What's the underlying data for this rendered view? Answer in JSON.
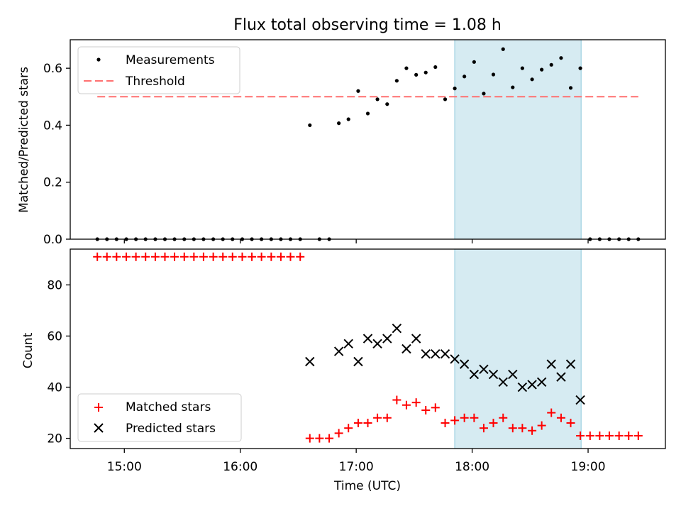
{
  "chart_data": [
    {
      "type": "scatter",
      "title": "Flux total observing time = 1.08 h",
      "ylabel": "Matched/Predicted stars",
      "ylim": [
        0,
        0.7
      ],
      "xlim": [
        14.5333,
        19.6667
      ],
      "yticks": [
        0.0,
        0.2,
        0.4,
        0.6
      ],
      "yticklabels": [
        "0.0",
        "0.2",
        "0.4",
        "0.6"
      ],
      "grid": false,
      "legend": "upper-left",
      "highlight": {
        "x0": 17.85,
        "x1": 18.94,
        "color": "#add8e6"
      },
      "series": [
        {
          "name": "Measurements",
          "marker": "dot",
          "color": "#000000",
          "points": [
            [
              14.767,
              0
            ],
            [
              14.85,
              0
            ],
            [
              14.933,
              0
            ],
            [
              15.017,
              0
            ],
            [
              15.1,
              0
            ],
            [
              15.183,
              0
            ],
            [
              15.267,
              0
            ],
            [
              15.35,
              0
            ],
            [
              15.433,
              0
            ],
            [
              15.517,
              0
            ],
            [
              15.6,
              0
            ],
            [
              15.683,
              0
            ],
            [
              15.767,
              0
            ],
            [
              15.85,
              0
            ],
            [
              15.933,
              0
            ],
            [
              16.017,
              0
            ],
            [
              16.1,
              0
            ],
            [
              16.183,
              0
            ],
            [
              16.267,
              0
            ],
            [
              16.35,
              0
            ],
            [
              16.433,
              0
            ],
            [
              16.517,
              0
            ],
            [
              16.6,
              0.4
            ],
            [
              16.683,
              0
            ],
            [
              16.767,
              0
            ],
            [
              16.85,
              0.407
            ],
            [
              16.933,
              0.421
            ],
            [
              17.017,
              0.52
            ],
            [
              17.1,
              0.441
            ],
            [
              17.183,
              0.491
            ],
            [
              17.267,
              0.474
            ],
            [
              17.35,
              0.556
            ],
            [
              17.433,
              0.6
            ],
            [
              17.517,
              0.577
            ],
            [
              17.6,
              0.585
            ],
            [
              17.683,
              0.604
            ],
            [
              17.767,
              0.491
            ],
            [
              17.85,
              0.529
            ],
            [
              17.933,
              0.571
            ],
            [
              18.017,
              0.622
            ],
            [
              18.1,
              0.511
            ],
            [
              18.183,
              0.578
            ],
            [
              18.267,
              0.667
            ],
            [
              18.35,
              0.533
            ],
            [
              18.433,
              0.6
            ],
            [
              18.517,
              0.561
            ],
            [
              18.6,
              0.595
            ],
            [
              18.683,
              0.612
            ],
            [
              18.767,
              0.636
            ],
            [
              18.85,
              0.531
            ],
            [
              18.933,
              0.6
            ],
            [
              19.017,
              0
            ],
            [
              19.1,
              0
            ],
            [
              19.183,
              0
            ],
            [
              19.267,
              0
            ],
            [
              19.35,
              0
            ],
            [
              19.433,
              0
            ]
          ]
        },
        {
          "name": "Threshold",
          "type": "line",
          "style": "dashed",
          "color": "#ff7070",
          "x": [
            14.767,
            19.433
          ],
          "y": [
            0.5,
            0.5
          ]
        }
      ]
    },
    {
      "type": "scatter",
      "xlabel": "Time (UTC)",
      "ylabel": "Count",
      "ylim": [
        16,
        94
      ],
      "xlim": [
        14.5333,
        19.6667
      ],
      "xticks": [
        15,
        16,
        17,
        18,
        19
      ],
      "xticklabels": [
        "15:00",
        "16:00",
        "17:00",
        "18:00",
        "19:00"
      ],
      "yticks": [
        20,
        40,
        60,
        80
      ],
      "yticklabels": [
        "20",
        "40",
        "60",
        "80"
      ],
      "grid": false,
      "legend": "lower-left",
      "highlight": {
        "x0": 17.85,
        "x1": 18.94,
        "color": "#add8e6"
      },
      "series": [
        {
          "name": "Matched stars",
          "marker": "plus",
          "color": "#ff0000",
          "points": [
            [
              14.767,
              91
            ],
            [
              14.85,
              91
            ],
            [
              14.933,
              91
            ],
            [
              15.017,
              91
            ],
            [
              15.1,
              91
            ],
            [
              15.183,
              91
            ],
            [
              15.267,
              91
            ],
            [
              15.35,
              91
            ],
            [
              15.433,
              91
            ],
            [
              15.517,
              91
            ],
            [
              15.6,
              91
            ],
            [
              15.683,
              91
            ],
            [
              15.767,
              91
            ],
            [
              15.85,
              91
            ],
            [
              15.933,
              91
            ],
            [
              16.017,
              91
            ],
            [
              16.1,
              91
            ],
            [
              16.183,
              91
            ],
            [
              16.267,
              91
            ],
            [
              16.35,
              91
            ],
            [
              16.433,
              91
            ],
            [
              16.517,
              91
            ],
            [
              16.6,
              20
            ],
            [
              16.683,
              20
            ],
            [
              16.767,
              20
            ],
            [
              16.85,
              22
            ],
            [
              16.933,
              24
            ],
            [
              17.017,
              26
            ],
            [
              17.1,
              26
            ],
            [
              17.183,
              28
            ],
            [
              17.267,
              28
            ],
            [
              17.35,
              35
            ],
            [
              17.433,
              33
            ],
            [
              17.517,
              34
            ],
            [
              17.6,
              31
            ],
            [
              17.683,
              32
            ],
            [
              17.767,
              26
            ],
            [
              17.85,
              27
            ],
            [
              17.933,
              28
            ],
            [
              18.017,
              28
            ],
            [
              18.1,
              24
            ],
            [
              18.183,
              26
            ],
            [
              18.267,
              28
            ],
            [
              18.35,
              24
            ],
            [
              18.433,
              24
            ],
            [
              18.517,
              23
            ],
            [
              18.6,
              25
            ],
            [
              18.683,
              30
            ],
            [
              18.767,
              28
            ],
            [
              18.85,
              26
            ],
            [
              18.933,
              21
            ],
            [
              19.017,
              21
            ],
            [
              19.1,
              21
            ],
            [
              19.183,
              21
            ],
            [
              19.267,
              21
            ],
            [
              19.35,
              21
            ],
            [
              19.433,
              21
            ]
          ]
        },
        {
          "name": "Predicted stars",
          "marker": "cross",
          "color": "#000000",
          "points": [
            [
              16.6,
              50
            ],
            [
              16.85,
              54
            ],
            [
              16.933,
              57
            ],
            [
              17.017,
              50
            ],
            [
              17.1,
              59
            ],
            [
              17.183,
              57
            ],
            [
              17.267,
              59
            ],
            [
              17.35,
              63
            ],
            [
              17.433,
              55
            ],
            [
              17.517,
              59
            ],
            [
              17.6,
              53
            ],
            [
              17.683,
              53
            ],
            [
              17.767,
              53
            ],
            [
              17.85,
              51
            ],
            [
              17.933,
              49
            ],
            [
              18.017,
              45
            ],
            [
              18.1,
              47
            ],
            [
              18.183,
              45
            ],
            [
              18.267,
              42
            ],
            [
              18.35,
              45
            ],
            [
              18.433,
              40
            ],
            [
              18.517,
              41
            ],
            [
              18.6,
              42
            ],
            [
              18.683,
              49
            ],
            [
              18.767,
              44
            ],
            [
              18.85,
              49
            ],
            [
              18.933,
              35
            ]
          ]
        }
      ]
    }
  ]
}
